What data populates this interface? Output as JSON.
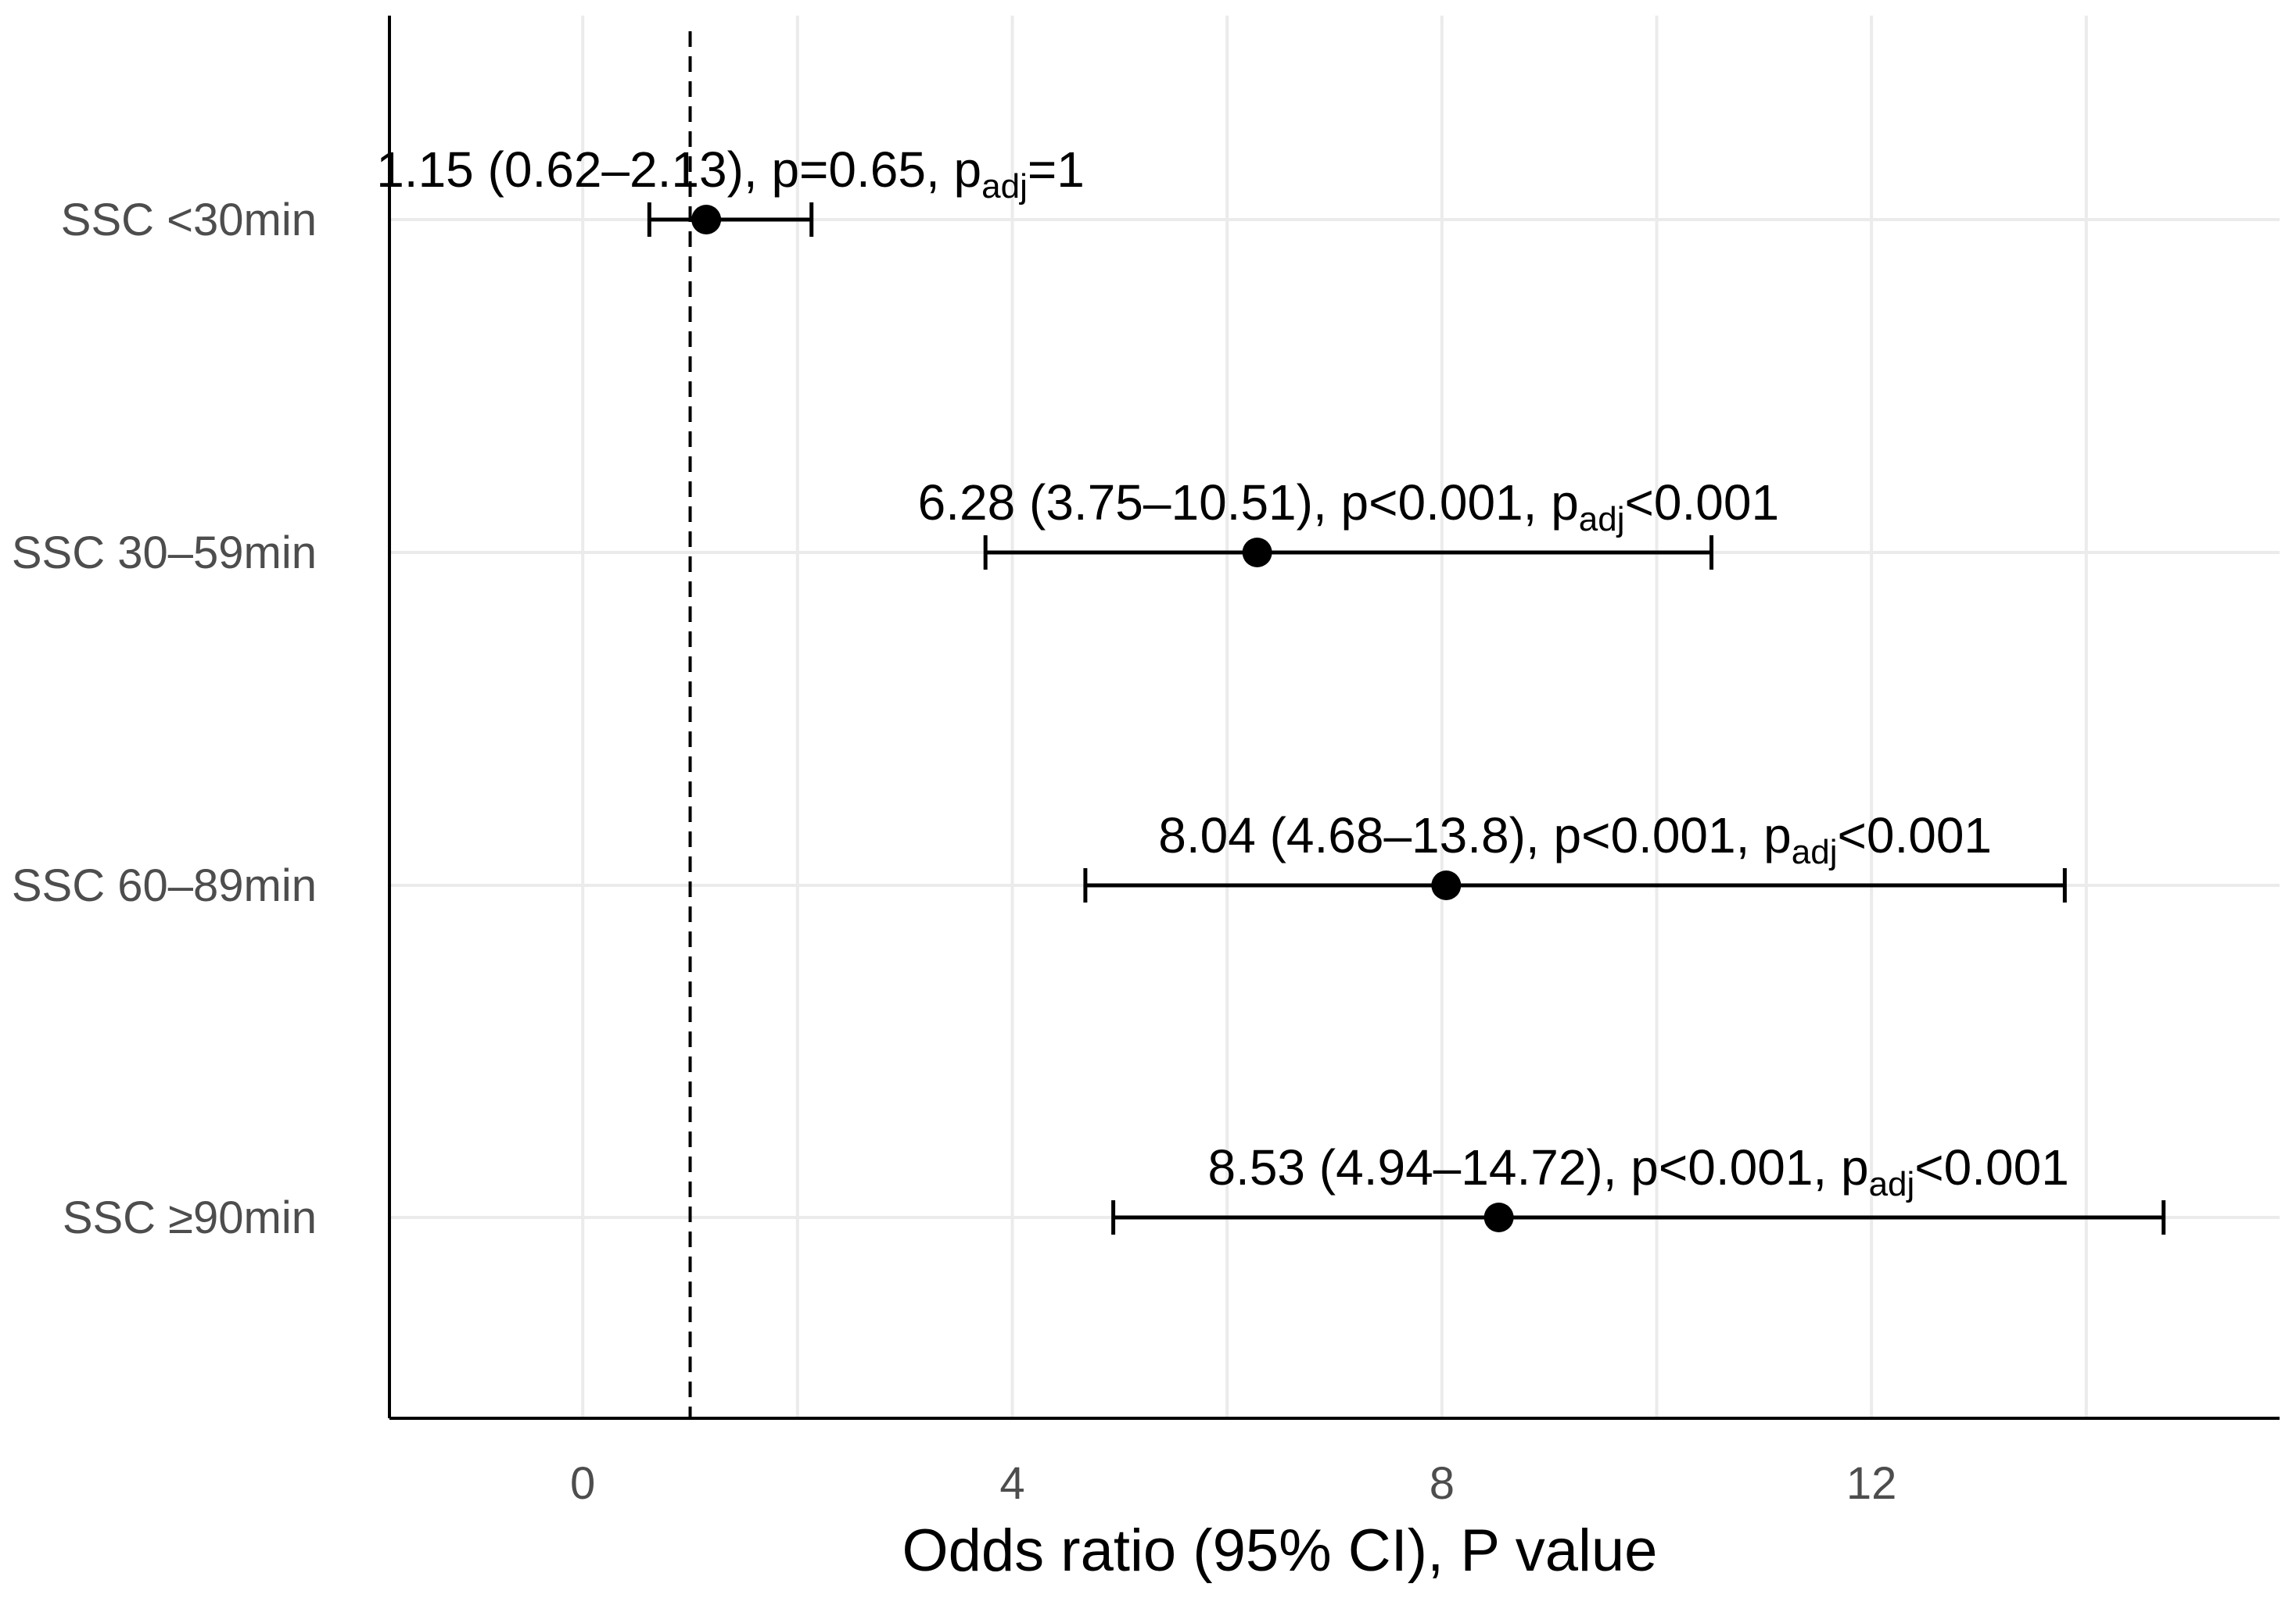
{
  "chart_data": {
    "type": "forest",
    "title": "",
    "xlabel": "Odds ratio (95% CI), P value",
    "ylabel": "",
    "xlim": [
      -1.8,
      15.8
    ],
    "xticks": [
      0,
      4,
      8,
      12
    ],
    "x_minor_gridlines": [
      2,
      6,
      10,
      14
    ],
    "reference_line": 1,
    "grid": true,
    "categories": [
      "SSC <30min",
      "SSC 30–59min",
      "SSC 60–89min",
      "SSC ≥90min"
    ],
    "series": [
      {
        "name": "Odds ratio",
        "values": [
          1.15,
          6.28,
          8.04,
          8.53
        ],
        "lower": [
          0.62,
          3.75,
          4.68,
          4.94
        ],
        "upper": [
          2.13,
          10.51,
          13.8,
          14.72
        ]
      }
    ],
    "annotations": [
      {
        "main": "1.15 (0.62–2.13), p=0.65, p",
        "sub": "adj",
        "tail": "=1"
      },
      {
        "main": "6.28 (3.75–10.51), p<0.001, p",
        "sub": "adj",
        "tail": "<0.001"
      },
      {
        "main": "8.04 (4.68–13.8), p<0.001, p",
        "sub": "adj",
        "tail": "<0.001"
      },
      {
        "main": "8.53 (4.94–14.72), p<0.001, p",
        "sub": "adj",
        "tail": "<0.001"
      }
    ]
  }
}
